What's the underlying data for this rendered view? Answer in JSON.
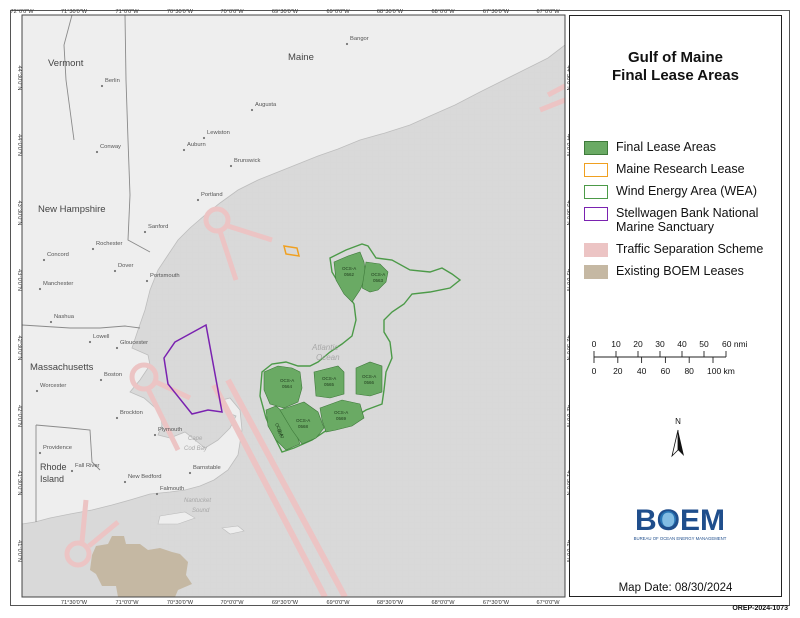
{
  "legend": {
    "title_line1": "Gulf of Maine",
    "title_line2": "Final Lease Areas",
    "items": [
      {
        "label": "Final Lease Areas",
        "fill": "#6aaa64",
        "stroke": "#3e7a3a"
      },
      {
        "label": "Maine Research Lease",
        "fill": "#ffffff",
        "stroke": "#f0a020"
      },
      {
        "label": "Wind Energy Area (WEA)",
        "fill": "#ffffff",
        "stroke": "#4c9a48"
      },
      {
        "label": "Stellwagen Bank National Marine Sanctuary",
        "fill": "#ffffff",
        "stroke": "#7a22b0"
      },
      {
        "label": "Traffic Separation Scheme",
        "fill": "#ecc4c4",
        "stroke": "#ecc4c4"
      },
      {
        "label": "Existing BOEM Leases",
        "fill": "#c5b8a3",
        "stroke": "#c5b8a3"
      }
    ]
  },
  "scale": {
    "nmi_ticks": [
      "0",
      "10",
      "20",
      "30",
      "40",
      "50",
      "60 nmi"
    ],
    "km_ticks": [
      "0",
      "20",
      "40",
      "60",
      "80",
      "100 km"
    ]
  },
  "north_label": "N",
  "logo": {
    "text": "BOEM",
    "subtitle": "BUREAU OF OCEAN ENERGY MANAGEMENT"
  },
  "map_date": "Map Date: 08/30/2024",
  "report_id": "OREP-2024-1073",
  "graticule": {
    "top": [
      "72°0'0\"W",
      "71°30'0\"W",
      "71°0'0\"W",
      "70°30'0\"W",
      "70°0'0\"W",
      "69°30'0\"W",
      "69°0'0\"W",
      "68°30'0\"W",
      "68°0'0\"W",
      "67°30'0\"W",
      "67°0'0\"W"
    ],
    "bottom": [
      "71°30'0\"W",
      "71°0'0\"W",
      "70°30'0\"W",
      "70°0'0\"W",
      "69°30'0\"W",
      "69°0'0\"W",
      "68°30'0\"W",
      "68°0'0\"W",
      "67°30'0\"W",
      "67°0'0\"W"
    ],
    "left": [
      "44°30'0\"N",
      "44°0'0\"N",
      "43°30'0\"N",
      "43°0'0\"N",
      "42°30'0\"N",
      "42°0'0\"N",
      "41°30'0\"N",
      "41°0'0\"N"
    ],
    "right": [
      "44°30'0\"N",
      "44°0'0\"N",
      "43°30'0\"N",
      "43°0'0\"N",
      "42°30'0\"N",
      "42°0'0\"N",
      "41°30'0\"N",
      "41°0'0\"N"
    ]
  },
  "places": {
    "states": [
      "Vermont",
      "Maine",
      "New Hampshire",
      "Massachusetts",
      "Rhode Island"
    ],
    "cities": [
      "Bangor",
      "Berlin",
      "Augusta",
      "Conway",
      "Lewiston",
      "Auburn",
      "Brunswick",
      "Portland",
      "Sanford",
      "Concord",
      "Rochester",
      "Dover",
      "Portsmouth",
      "Manchester",
      "Nashua",
      "Lowell",
      "Gloucester",
      "Boston",
      "Worcester",
      "Brockton",
      "Plymouth",
      "Providence",
      "Fall River",
      "New Bedford",
      "Barnstable",
      "Falmouth"
    ],
    "water": [
      "Atlantic",
      "Ocean",
      "Cape Cod Bay",
      "Nantucket Sound"
    ]
  },
  "lease_labels": [
    [
      "OCS-A",
      "0562"
    ],
    [
      "OCS-A",
      "0563"
    ],
    [
      "OCS-A",
      "0564"
    ],
    [
      "OCS-A",
      "0565"
    ],
    [
      "OCS-A",
      "0566"
    ],
    [
      "OCS-A",
      "0567"
    ],
    [
      "OCS-A",
      "0568"
    ],
    [
      "OCS-A",
      "0569"
    ]
  ]
}
